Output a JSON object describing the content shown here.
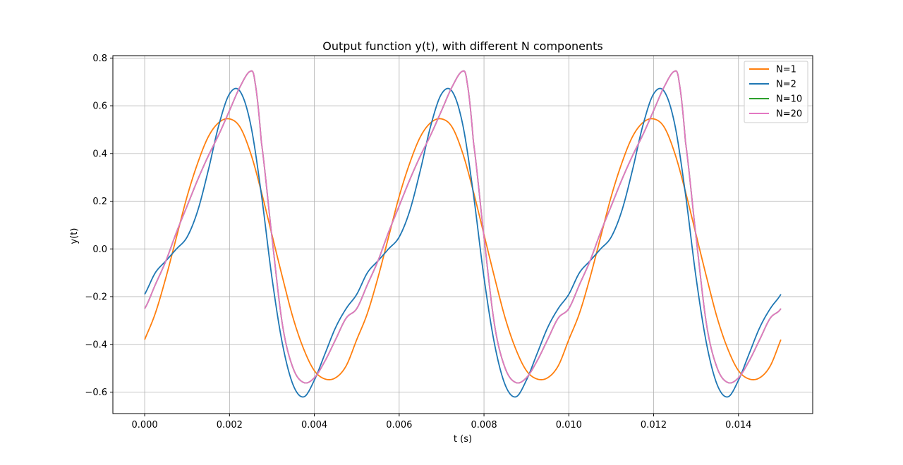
{
  "chart_data": {
    "type": "line",
    "title": "Output function y(t), with different N components",
    "xlabel": "t (s)",
    "ylabel": "y(t)",
    "xlim": [
      -0.00075,
      0.01575
    ],
    "ylim": [
      -0.69,
      0.81
    ],
    "xticks": [
      0.0,
      0.002,
      0.004,
      0.006,
      0.008,
      0.01,
      0.012,
      0.014
    ],
    "xtick_labels": [
      "0.000",
      "0.002",
      "0.004",
      "0.006",
      "0.008",
      "0.010",
      "0.012",
      "0.014"
    ],
    "yticks": [
      -0.6,
      -0.4,
      -0.2,
      0.0,
      0.2,
      0.4,
      0.6,
      0.8
    ],
    "ytick_labels": [
      "−0.6",
      "−0.4",
      "−0.2",
      "0.0",
      "0.2",
      "0.4",
      "0.6",
      "0.8"
    ],
    "grid": true,
    "legend_position": "top-right",
    "period": 0.005,
    "series": [
      {
        "name": "N=1",
        "color": "#ff7f0e",
        "x": [
          0.0,
          0.00025,
          0.0005,
          0.00075,
          0.001,
          0.00125,
          0.0015,
          0.00175,
          0.002,
          0.00225,
          0.0025,
          0.00275,
          0.003,
          0.00325,
          0.0035,
          0.00375,
          0.004,
          0.00425,
          0.0045,
          0.00475,
          0.005
        ],
        "values": [
          -0.38,
          -0.27,
          -0.12,
          0.05,
          0.22,
          0.36,
          0.47,
          0.53,
          0.545,
          0.51,
          0.4,
          0.24,
          0.06,
          -0.12,
          -0.29,
          -0.42,
          -0.51,
          -0.545,
          -0.54,
          -0.49,
          -0.38
        ]
      },
      {
        "name": "N=2",
        "color": "#1f77b4",
        "x": [
          0.0,
          0.00025,
          0.0005,
          0.00075,
          0.001,
          0.00125,
          0.0015,
          0.00175,
          0.002,
          0.00225,
          0.0025,
          0.00275,
          0.003,
          0.00325,
          0.0035,
          0.00375,
          0.004,
          0.00425,
          0.0045,
          0.00475,
          0.005
        ],
        "values": [
          -0.19,
          -0.1,
          -0.05,
          0.0,
          0.05,
          0.16,
          0.33,
          0.52,
          0.65,
          0.66,
          0.52,
          0.23,
          -0.12,
          -0.4,
          -0.57,
          -0.62,
          -0.55,
          -0.44,
          -0.33,
          -0.25,
          -0.19
        ]
      },
      {
        "name": "N=10",
        "color": "#2ca02c",
        "x": [
          0.0,
          0.00025,
          0.0005,
          0.00075,
          0.001,
          0.00125,
          0.0015,
          0.00175,
          0.002,
          0.00225,
          0.0025,
          0.0026,
          0.00275,
          0.003,
          0.00325,
          0.0035,
          0.00375,
          0.004,
          0.00425,
          0.0045,
          0.00475,
          0.005
        ],
        "values": [
          -0.25,
          -0.15,
          -0.05,
          0.07,
          0.18,
          0.29,
          0.39,
          0.48,
          0.58,
          0.68,
          0.745,
          0.7,
          0.45,
          0.05,
          -0.32,
          -0.5,
          -0.56,
          -0.54,
          -0.47,
          -0.38,
          -0.29,
          -0.25
        ]
      },
      {
        "name": "N=20",
        "color": "#e377c2",
        "x": [
          0.0,
          0.00025,
          0.0005,
          0.00075,
          0.001,
          0.00125,
          0.0015,
          0.00175,
          0.002,
          0.00225,
          0.0025,
          0.0026,
          0.00275,
          0.003,
          0.00325,
          0.0035,
          0.00375,
          0.004,
          0.00425,
          0.0045,
          0.00475,
          0.005
        ],
        "values": [
          -0.25,
          -0.15,
          -0.05,
          0.07,
          0.18,
          0.29,
          0.39,
          0.48,
          0.58,
          0.68,
          0.745,
          0.7,
          0.45,
          0.05,
          -0.32,
          -0.5,
          -0.56,
          -0.54,
          -0.47,
          -0.38,
          -0.29,
          -0.25
        ]
      }
    ]
  }
}
